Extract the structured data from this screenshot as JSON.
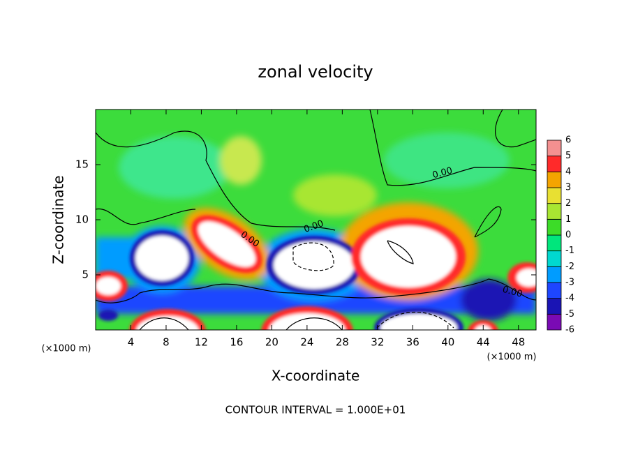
{
  "chart_data": {
    "type": "contour",
    "title": "zonal velocity",
    "x_label": "X-coordinate",
    "y_label": "Z-coordinate",
    "x_unit": "(×1000 m)",
    "y_unit": "(×1000 m)",
    "xlim": [
      0,
      50
    ],
    "ylim": [
      0,
      20
    ],
    "xticks": [
      4,
      8,
      12,
      16,
      20,
      24,
      28,
      32,
      36,
      40,
      44,
      48
    ],
    "yticks": [
      5,
      10,
      15
    ],
    "contour_label": "0.00",
    "footer": "CONTOUR INTERVAL = 1.000E+01",
    "colorbar": {
      "levels": [
        -6,
        -5,
        -4,
        -3,
        -2,
        -1,
        0,
        1,
        2,
        3,
        4,
        5,
        6
      ],
      "colors": [
        "#7a0ab4",
        "#1a14b4",
        "#1e46ff",
        "#009cff",
        "#00d8d0",
        "#00e67c",
        "#3cdc28",
        "#a8e632",
        "#e8e032",
        "#f4a400",
        "#ff2a2a",
        "#f49090"
      ]
    }
  }
}
